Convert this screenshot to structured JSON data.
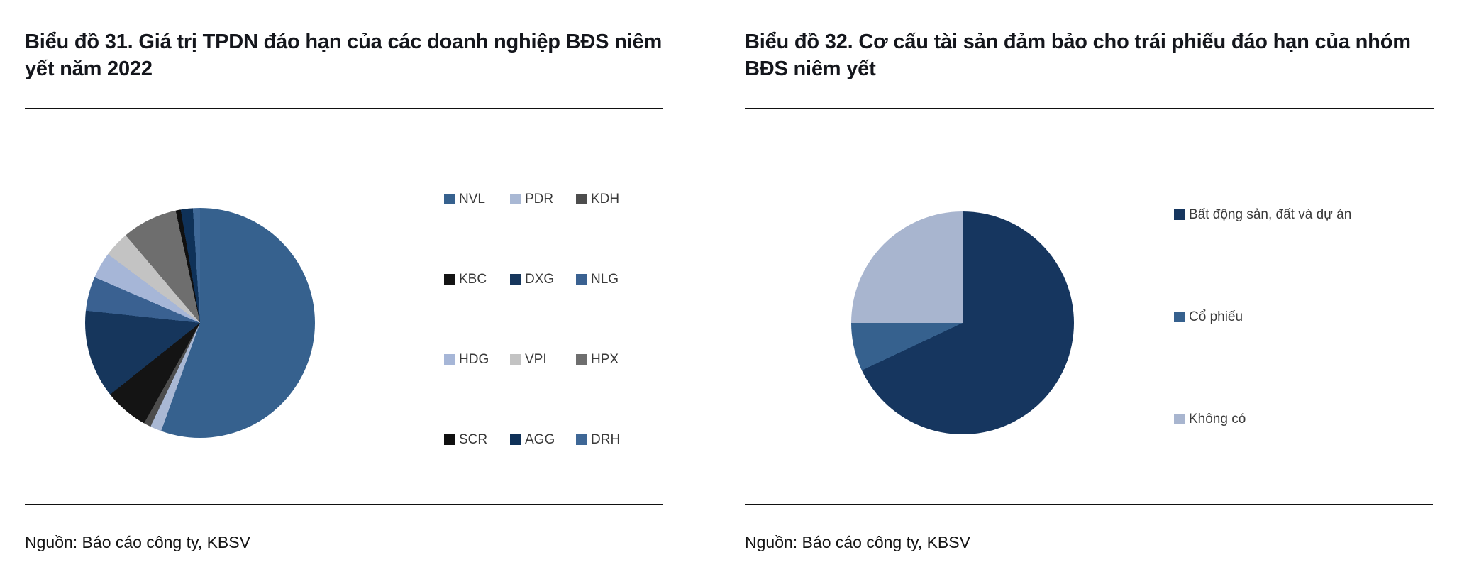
{
  "chart_data": [
    {
      "type": "pie",
      "title": "Biểu đồ 31. Giá trị TPDN đáo hạn của các doanh nghiệp BĐS niêm yết năm 2022",
      "source": "Nguồn: Báo cáo công ty, KBSV",
      "values_unit": "% of total (estimated from slice angles, no data labels shown)",
      "start_angle_deg": 0,
      "direction": "clockwise",
      "legend_position": "right",
      "legend_columns": 3,
      "slices": [
        {
          "label": "NVL",
          "value": 55.5,
          "color": "#36618E"
        },
        {
          "label": "PDR",
          "value": 1.6,
          "color": "#A9B8D4"
        },
        {
          "label": "KDH",
          "value": 1.0,
          "color": "#4D4D4D"
        },
        {
          "label": "KBC",
          "value": 6.2,
          "color": "#141414"
        },
        {
          "label": "DXG",
          "value": 12.4,
          "color": "#16365C"
        },
        {
          "label": "NLG",
          "value": 4.8,
          "color": "#3A6191"
        },
        {
          "label": "HDG",
          "value": 3.7,
          "color": "#A6B6D7"
        },
        {
          "label": "VPI",
          "value": 3.6,
          "color": "#C3C3C3"
        },
        {
          "label": "HPX",
          "value": 7.8,
          "color": "#6E6E6E"
        },
        {
          "label": "SCR",
          "value": 0.7,
          "color": "#101010"
        },
        {
          "label": "AGG",
          "value": 1.7,
          "color": "#0F3158"
        },
        {
          "label": "DRH",
          "value": 1.0,
          "color": "#3E6796"
        }
      ]
    },
    {
      "type": "pie",
      "title": "Biểu đồ 32. Cơ cấu tài sản đảm bảo cho trái phiếu đáo hạn của nhóm BĐS niêm yết",
      "source": "Nguồn: Báo cáo công ty, KBSV",
      "values_unit": "% of total (estimated from slice angles, no data labels shown)",
      "start_angle_deg": 0,
      "direction": "clockwise",
      "legend_position": "right",
      "legend_columns": 1,
      "slices": [
        {
          "label": "Bất động sản, đất và dự án",
          "value": 68,
          "color": "#16365F"
        },
        {
          "label": "Cổ phiếu",
          "value": 7,
          "color": "#36618E"
        },
        {
          "label": "Không có",
          "value": 25,
          "color": "#A8B5CF"
        }
      ]
    }
  ]
}
